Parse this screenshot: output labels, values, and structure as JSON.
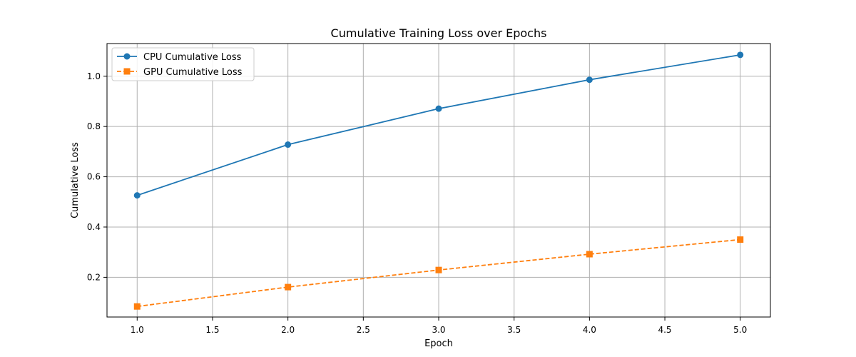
{
  "chart_data": {
    "type": "line",
    "title": "Cumulative Training Loss over Epochs",
    "xlabel": "Epoch",
    "ylabel": "Cumulative Loss",
    "xlim": [
      0.8,
      5.2
    ],
    "ylim": [
      0.042,
      1.13
    ],
    "xticks": [
      1.0,
      1.5,
      2.0,
      2.5,
      3.0,
      3.5,
      4.0,
      4.5,
      5.0
    ],
    "xtick_labels": [
      "1.0",
      "1.5",
      "2.0",
      "2.5",
      "3.0",
      "3.5",
      "4.0",
      "4.5",
      "5.0"
    ],
    "yticks": [
      0.2,
      0.4,
      0.6,
      0.8,
      1.0
    ],
    "ytick_labels": [
      "0.2",
      "0.4",
      "0.6",
      "0.8",
      "1.0"
    ],
    "grid": true,
    "legend_position": "top-left",
    "x": [
      1,
      2,
      3,
      4,
      5
    ],
    "series": [
      {
        "name": "CPU Cumulative Loss",
        "values": [
          0.526,
          0.728,
          0.871,
          0.986,
          1.085
        ],
        "color": "#1f77b4",
        "marker": "circle",
        "linestyle": "solid"
      },
      {
        "name": "GPU Cumulative Loss",
        "values": [
          0.084,
          0.161,
          0.229,
          0.292,
          0.35
        ],
        "color": "#ff7f0e",
        "marker": "square",
        "linestyle": "dashed"
      }
    ]
  }
}
